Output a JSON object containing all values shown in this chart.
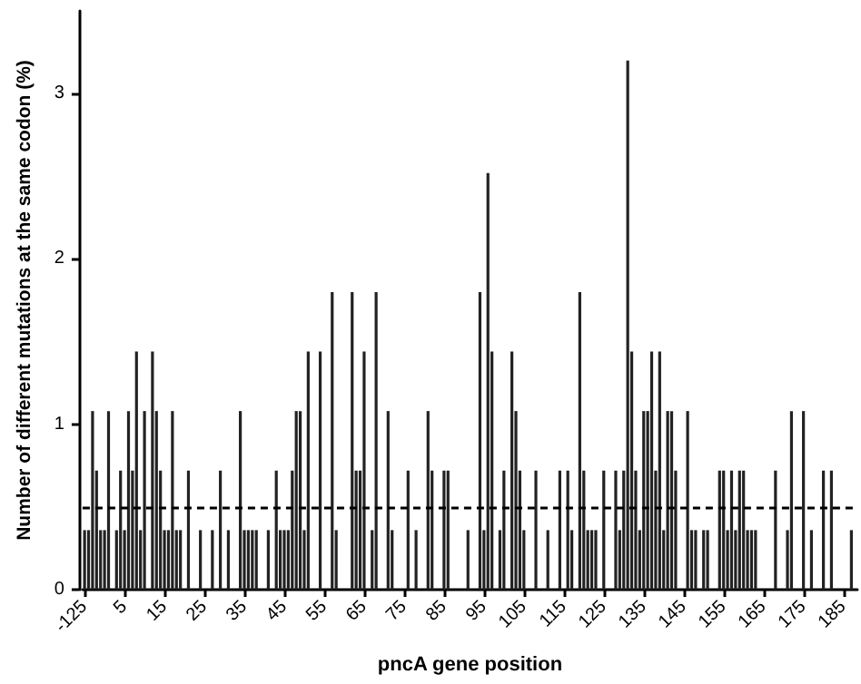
{
  "chart_data": {
    "type": "bar",
    "xlabel": "pncA gene position",
    "ylabel": "Number of different mutations at the same codon (%)",
    "categories": [
      "-125",
      null,
      null,
      null,
      null,
      null,
      null,
      null,
      null,
      null,
      "5",
      null,
      null,
      null,
      null,
      null,
      null,
      null,
      null,
      null,
      "15",
      null,
      null,
      null,
      null,
      null,
      null,
      null,
      null,
      null,
      "25",
      null,
      null,
      null,
      null,
      null,
      null,
      null,
      null,
      null,
      "35",
      null,
      null,
      null,
      null,
      null,
      null,
      null,
      null,
      null,
      "45",
      null,
      null,
      null,
      null,
      null,
      null,
      null,
      null,
      null,
      "55",
      null,
      null,
      null,
      null,
      null,
      null,
      null,
      null,
      null,
      "65",
      null,
      null,
      null,
      null,
      null,
      null,
      null,
      null,
      null,
      "75",
      null,
      null,
      null,
      null,
      null,
      null,
      null,
      null,
      null,
      "85",
      null,
      null,
      null,
      null,
      null,
      null,
      null,
      null,
      null,
      "95",
      null,
      null,
      null,
      null,
      null,
      null,
      null,
      null,
      null,
      "105",
      null,
      null,
      null,
      null,
      null,
      null,
      null,
      null,
      null,
      "115",
      null,
      null,
      null,
      null,
      null,
      null,
      null,
      null,
      null,
      "125",
      null,
      null,
      null,
      null,
      null,
      null,
      null,
      null,
      null,
      "135",
      null,
      null,
      null,
      null,
      null,
      null,
      null,
      null,
      null,
      "145",
      null,
      null,
      null,
      null,
      null,
      null,
      null,
      null,
      null,
      "155",
      null,
      null,
      null,
      null,
      null,
      null,
      null,
      null,
      null,
      "165",
      null,
      null,
      null,
      null,
      null,
      null,
      null,
      null,
      null,
      "175",
      null,
      null,
      null,
      null,
      null,
      null,
      null,
      null,
      null,
      "185",
      null,
      null,
      null
    ],
    "values": [
      0.36,
      0.36,
      1.08,
      0.72,
      0.36,
      0.36,
      1.08,
      null,
      0.36,
      0.72,
      0.36,
      1.08,
      0.72,
      1.44,
      0.36,
      1.08,
      null,
      1.44,
      1.08,
      0.72,
      0.36,
      0.36,
      1.08,
      0.36,
      0.36,
      null,
      0.72,
      null,
      null,
      0.36,
      null,
      null,
      0.36,
      null,
      0.72,
      null,
      0.36,
      null,
      null,
      1.08,
      0.36,
      0.36,
      0.36,
      0.36,
      null,
      null,
      0.36,
      null,
      0.72,
      0.36,
      0.36,
      0.36,
      0.72,
      1.08,
      1.08,
      0.36,
      1.44,
      null,
      null,
      1.44,
      null,
      null,
      1.8,
      0.36,
      null,
      null,
      null,
      1.8,
      0.72,
      0.72,
      1.44,
      null,
      0.36,
      1.8,
      null,
      null,
      1.08,
      0.36,
      null,
      null,
      null,
      0.72,
      null,
      0.36,
      null,
      null,
      1.08,
      0.72,
      null,
      null,
      0.72,
      0.72,
      null,
      null,
      null,
      null,
      0.36,
      null,
      null,
      1.8,
      0.36,
      2.52,
      1.44,
      null,
      0.36,
      0.72,
      null,
      1.44,
      1.08,
      0.72,
      0.36,
      null,
      null,
      0.72,
      null,
      null,
      0.36,
      null,
      null,
      0.72,
      null,
      0.72,
      0.36,
      null,
      1.8,
      0.72,
      0.36,
      0.36,
      0.36,
      null,
      0.72,
      null,
      null,
      0.72,
      0.36,
      0.72,
      3.2,
      1.44,
      0.72,
      0.36,
      1.08,
      1.08,
      1.44,
      0.72,
      1.44,
      0.36,
      1.08,
      1.08,
      0.72,
      null,
      null,
      1.08,
      0.36,
      0.36,
      null,
      0.36,
      0.36,
      null,
      null,
      0.72,
      0.72,
      0.36,
      0.72,
      0.36,
      0.72,
      0.72,
      0.36,
      0.36,
      0.36,
      null,
      null,
      null,
      null,
      0.72,
      null,
      null,
      0.36,
      1.08,
      null,
      null,
      1.08,
      null,
      0.36,
      null,
      null,
      0.72,
      null,
      0.72,
      null,
      null,
      null,
      null,
      0.36,
      null
    ],
    "color": "#222222",
    "ylim": [
      0,
      3.5
    ],
    "yticks": [
      0,
      1,
      2,
      3
    ],
    "ref_lines": [
      {
        "axis": "y",
        "value": 0.5,
        "label": null,
        "color": "#000000",
        "line_style": "dashed"
      }
    ],
    "grid": false
  }
}
